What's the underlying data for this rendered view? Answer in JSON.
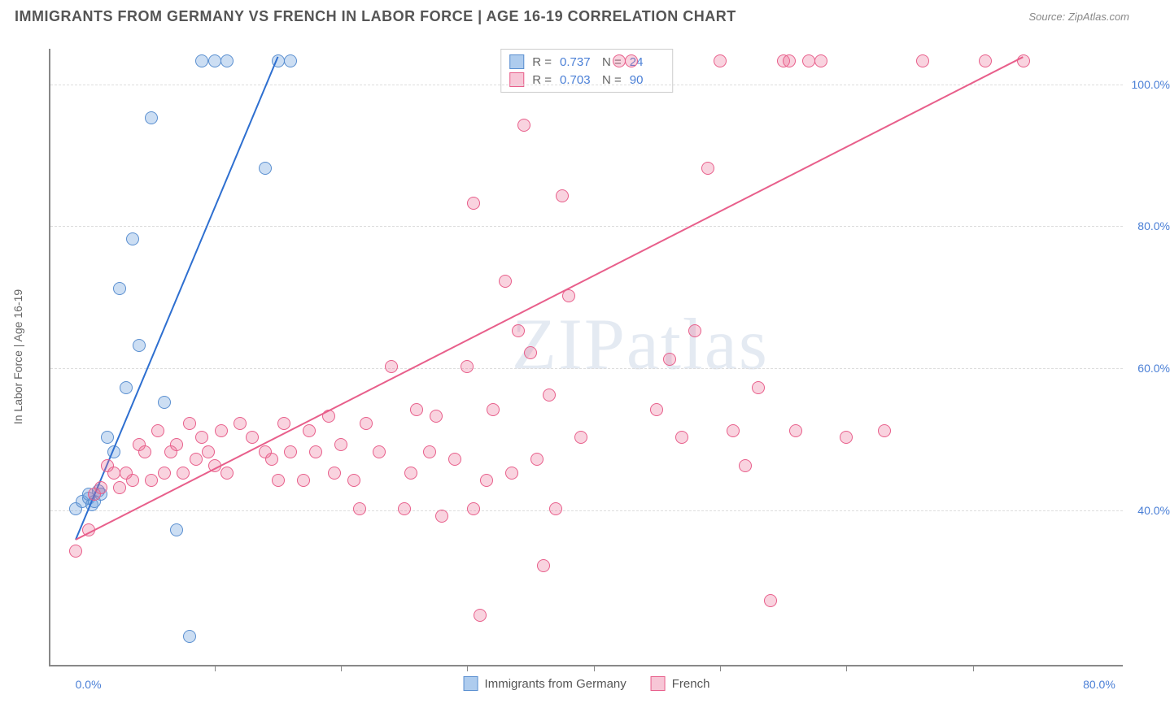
{
  "header": {
    "title": "IMMIGRANTS FROM GERMANY VS FRENCH IN LABOR FORCE | AGE 16-19 CORRELATION CHART",
    "source": "Source: ZipAtlas.com"
  },
  "watermark": "ZIPatlas",
  "chart": {
    "type": "scatter",
    "background_color": "#ffffff",
    "grid_color": "#dddddd",
    "axis_color": "#888888",
    "ylabel": "In Labor Force | Age 16-19",
    "label_fontsize": 14,
    "label_color": "#666666",
    "tick_color": "#4a7fd6",
    "xlim": [
      -3,
      82
    ],
    "ylim": [
      18,
      105
    ],
    "yticks": [
      40,
      60,
      80,
      100
    ],
    "ytick_labels": [
      "40.0%",
      "60.0%",
      "80.0%",
      "100.0%"
    ],
    "xticks": [
      0,
      80
    ],
    "xtick_labels": [
      "0.0%",
      "80.0%"
    ],
    "xtick_minor": [
      10,
      20,
      30,
      40,
      50,
      60,
      70
    ],
    "marker_radius": 8,
    "series": [
      {
        "name": "Immigrants from Germany",
        "color_fill": "rgba(108,160,220,0.35)",
        "color_stroke": "#5a8fd0",
        "swatch_fill": "#aeccee",
        "swatch_border": "#5a8fd0",
        "trend_color": "#2e6fd0",
        "r": "0.737",
        "n": "24",
        "trend": {
          "x1": -1,
          "y1": 36,
          "x2": 15,
          "y2": 104
        },
        "points": [
          [
            -1,
            40
          ],
          [
            -0.5,
            41
          ],
          [
            0,
            41.5
          ],
          [
            0,
            42
          ],
          [
            0.3,
            40.5
          ],
          [
            0.5,
            41
          ],
          [
            0.8,
            42.5
          ],
          [
            1,
            42
          ],
          [
            1.5,
            50
          ],
          [
            2,
            48
          ],
          [
            2.5,
            71
          ],
          [
            3,
            57
          ],
          [
            3.5,
            78
          ],
          [
            4,
            63
          ],
          [
            5,
            95
          ],
          [
            6,
            55
          ],
          [
            7,
            37
          ],
          [
            8,
            22
          ],
          [
            9,
            103
          ],
          [
            10,
            103
          ],
          [
            11,
            103
          ],
          [
            14,
            88
          ],
          [
            15,
            103
          ],
          [
            16,
            103
          ]
        ]
      },
      {
        "name": "French",
        "color_fill": "rgba(235,110,150,0.30)",
        "color_stroke": "#e85f8b",
        "swatch_fill": "#f7c6d6",
        "swatch_border": "#e85f8b",
        "trend_color": "#e85f8b",
        "r": "0.703",
        "n": "90",
        "trend": {
          "x1": -1,
          "y1": 36,
          "x2": 74,
          "y2": 104
        },
        "points": [
          [
            -1,
            34
          ],
          [
            0,
            37
          ],
          [
            0.5,
            42
          ],
          [
            1,
            43
          ],
          [
            1.5,
            46
          ],
          [
            2,
            45
          ],
          [
            2.5,
            43
          ],
          [
            3,
            45
          ],
          [
            3.5,
            44
          ],
          [
            4,
            49
          ],
          [
            4.5,
            48
          ],
          [
            5,
            44
          ],
          [
            5.5,
            51
          ],
          [
            6,
            45
          ],
          [
            6.5,
            48
          ],
          [
            7,
            49
          ],
          [
            7.5,
            45
          ],
          [
            8,
            52
          ],
          [
            8.5,
            47
          ],
          [
            9,
            50
          ],
          [
            9.5,
            48
          ],
          [
            10,
            46
          ],
          [
            10.5,
            51
          ],
          [
            11,
            45
          ],
          [
            12,
            52
          ],
          [
            13,
            50
          ],
          [
            14,
            48
          ],
          [
            14.5,
            47
          ],
          [
            15,
            44
          ],
          [
            15.5,
            52
          ],
          [
            16,
            48
          ],
          [
            17,
            44
          ],
          [
            17.5,
            51
          ],
          [
            18,
            48
          ],
          [
            19,
            53
          ],
          [
            19.5,
            45
          ],
          [
            20,
            49
          ],
          [
            21,
            44
          ],
          [
            21.5,
            40
          ],
          [
            22,
            52
          ],
          [
            23,
            48
          ],
          [
            24,
            60
          ],
          [
            25,
            40
          ],
          [
            25.5,
            45
          ],
          [
            26,
            54
          ],
          [
            27,
            48
          ],
          [
            27.5,
            53
          ],
          [
            28,
            39
          ],
          [
            29,
            47
          ],
          [
            30,
            60
          ],
          [
            30.5,
            83
          ],
          [
            30.5,
            40
          ],
          [
            31,
            25
          ],
          [
            31.5,
            44
          ],
          [
            32,
            54
          ],
          [
            33,
            72
          ],
          [
            33.5,
            45
          ],
          [
            34,
            65
          ],
          [
            34.5,
            94
          ],
          [
            35,
            62
          ],
          [
            35.5,
            47
          ],
          [
            36,
            32
          ],
          [
            36.5,
            56
          ],
          [
            37,
            40
          ],
          [
            37.5,
            84
          ],
          [
            38,
            70
          ],
          [
            39,
            50
          ],
          [
            42,
            103
          ],
          [
            43,
            103
          ],
          [
            45,
            54
          ],
          [
            46,
            61
          ],
          [
            47,
            50
          ],
          [
            48,
            65
          ],
          [
            49,
            88
          ],
          [
            50,
            103
          ],
          [
            51,
            51
          ],
          [
            52,
            46
          ],
          [
            53,
            57
          ],
          [
            54,
            27
          ],
          [
            55,
            103
          ],
          [
            55.5,
            103
          ],
          [
            56,
            51
          ],
          [
            57,
            103
          ],
          [
            58,
            103
          ],
          [
            60,
            50
          ],
          [
            63,
            51
          ],
          [
            66,
            103
          ],
          [
            71,
            103
          ],
          [
            74,
            103
          ]
        ]
      }
    ],
    "legend_bottom": [
      {
        "label": "Immigrants from Germany",
        "series": 0
      },
      {
        "label": "French",
        "series": 1
      }
    ]
  }
}
